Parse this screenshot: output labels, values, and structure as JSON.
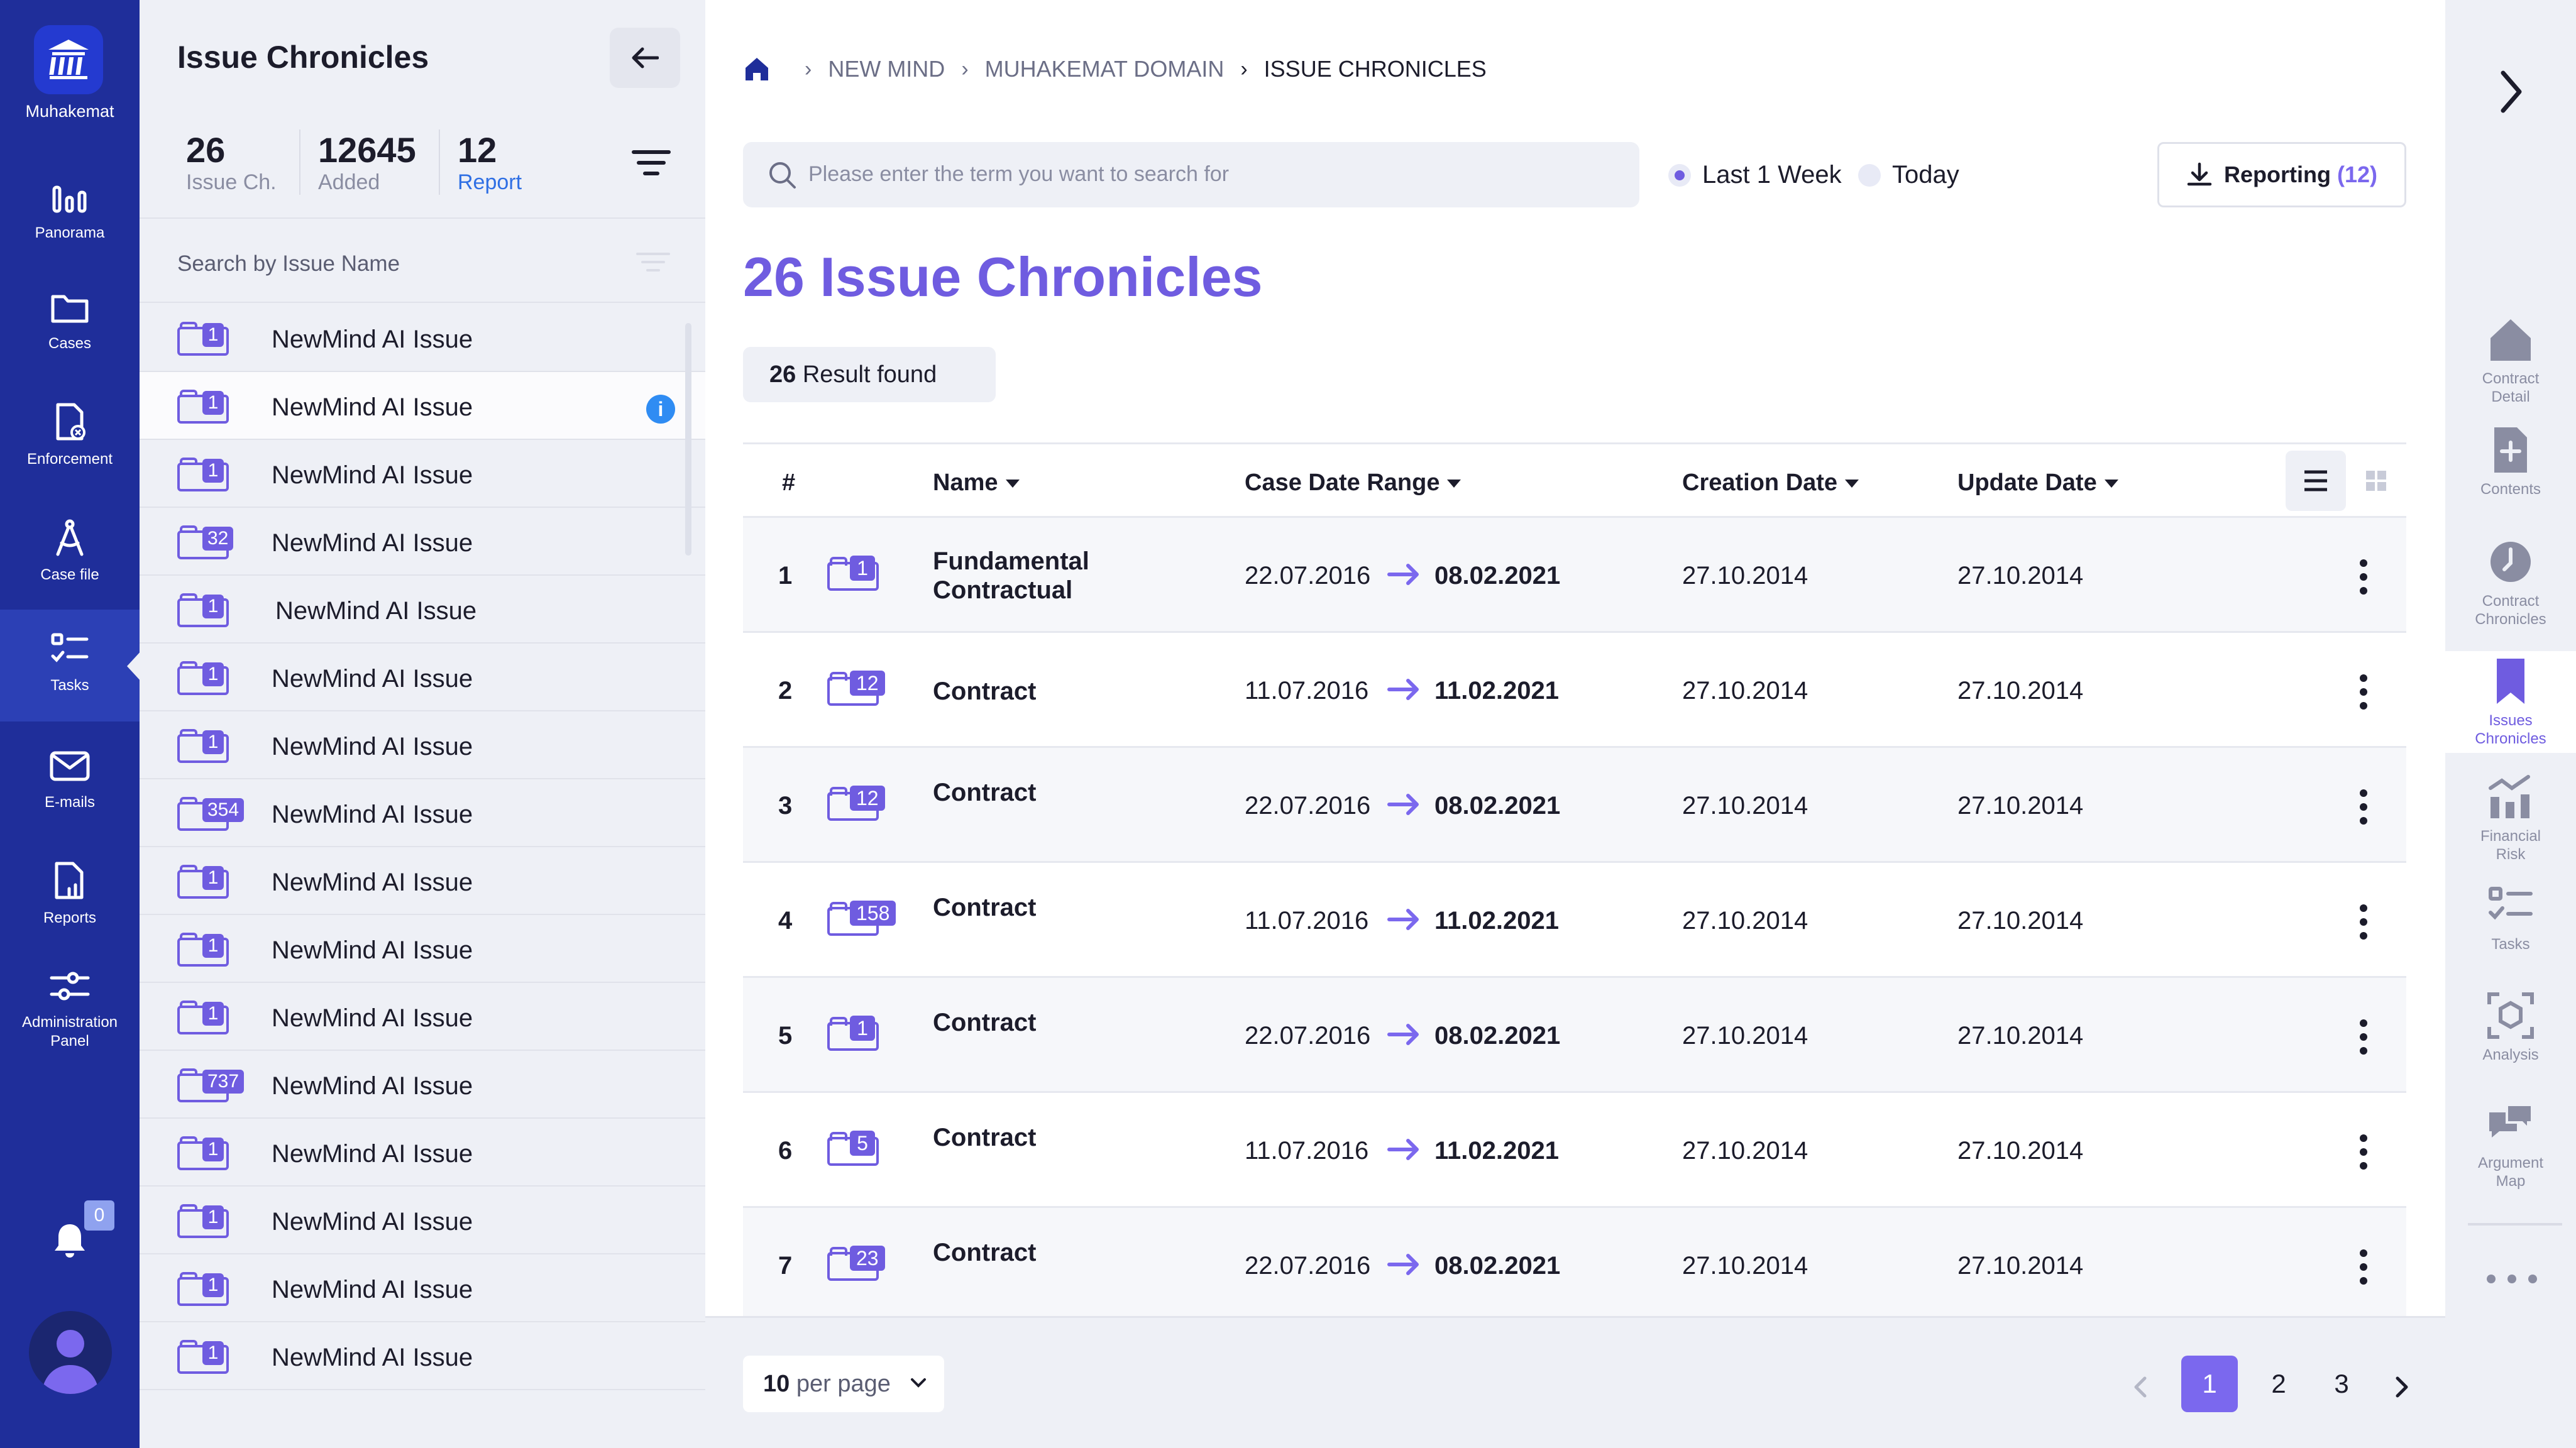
{
  "app": {
    "name": "Muhakemat",
    "colors": {
      "nav_bg": "#1f2e9a",
      "accent": "#6f5ce0",
      "panel_bg": "#eef0f6"
    }
  },
  "left_nav": {
    "items": [
      {
        "label": "Panorama",
        "icon": "bar-chart-icon"
      },
      {
        "label": "Cases",
        "icon": "folder-icon"
      },
      {
        "label": "Enforcement",
        "icon": "document-cancel-icon"
      },
      {
        "label": "Case file",
        "icon": "compass-icon"
      },
      {
        "label": "Tasks",
        "icon": "task-list-icon",
        "active": true
      },
      {
        "label": "E-mails",
        "icon": "mail-icon"
      },
      {
        "label": "Reports",
        "icon": "report-icon"
      },
      {
        "label": "Administration",
        "label2": "Panel",
        "icon": "sliders-icon"
      }
    ],
    "notifications": "0"
  },
  "issue_panel": {
    "title": "Issue Chronicles",
    "stats": [
      {
        "value": "26",
        "caption": "Issue Ch."
      },
      {
        "value": "12645",
        "caption": "Added"
      },
      {
        "value": "12",
        "caption": "Report"
      }
    ],
    "search_placeholder": "Search by Issue Name",
    "issues": [
      {
        "badge": "1",
        "name": "NewMind AI Issue"
      },
      {
        "badge": "1",
        "name": "NewMind AI Issue",
        "info": "i"
      },
      {
        "badge": "1",
        "name": "NewMind AI Issue"
      },
      {
        "badge": "32",
        "name": "NewMind AI Issue"
      },
      {
        "badge": "1",
        "name": "NewMind AI Issue"
      },
      {
        "badge": "1",
        "name": "NewMind AI Issue"
      },
      {
        "badge": "1",
        "name": "NewMind AI Issue"
      },
      {
        "badge": "354",
        "name": "NewMind AI Issue"
      },
      {
        "badge": "1",
        "name": "NewMind AI Issue"
      },
      {
        "badge": "1",
        "name": "NewMind AI Issue"
      },
      {
        "badge": "1",
        "name": "NewMind AI Issue"
      },
      {
        "badge": "737",
        "name": "NewMind AI Issue"
      },
      {
        "badge": "1",
        "name": "NewMind AI Issue"
      },
      {
        "badge": "1",
        "name": "NewMind AI Issue"
      },
      {
        "badge": "1",
        "name": "NewMind AI Issue"
      },
      {
        "badge": "1",
        "name": "NewMind AI Issue"
      }
    ]
  },
  "main": {
    "breadcrumb": [
      "NEW MIND",
      "MUHAKEMAT DOMAIN",
      "ISSUE CHRONICLES"
    ],
    "search_placeholder": "Please enter the term you want to search for",
    "filters": [
      {
        "label": "Last 1 Week",
        "selected": true
      },
      {
        "label": "Today",
        "selected": false
      }
    ],
    "reporting": {
      "label": "Reporting",
      "count": "(12)"
    },
    "heading": "26 Issue Chronicles",
    "results": {
      "count": "26",
      "label": "Result found"
    },
    "table": {
      "headers": [
        "#",
        "Name",
        "Case Date Range",
        "Creation Date",
        "Update Date"
      ],
      "rows": [
        {
          "num": "1",
          "badge": "1",
          "name": "Fundamental Contractual",
          "from": "22.07.2016",
          "to": "08.02.2021",
          "created": "27.10.2014",
          "updated": "27.10.2014"
        },
        {
          "num": "2",
          "badge": "12",
          "name": "Contract",
          "from": "11.07.2016",
          "to": "11.02.2021",
          "created": "27.10.2014",
          "updated": "27.10.2014"
        },
        {
          "num": "3",
          "badge": "12",
          "name": "Contract",
          "from": "22.07.2016",
          "to": "08.02.2021",
          "created": "27.10.2014",
          "updated": "27.10.2014"
        },
        {
          "num": "4",
          "badge": "158",
          "name": "Contract",
          "from": "11.07.2016",
          "to": "11.02.2021",
          "created": "27.10.2014",
          "updated": "27.10.2014"
        },
        {
          "num": "5",
          "badge": "1",
          "name": "Contract",
          "from": "22.07.2016",
          "to": "08.02.2021",
          "created": "27.10.2014",
          "updated": "27.10.2014"
        },
        {
          "num": "6",
          "badge": "5",
          "name": "Contract",
          "from": "11.07.2016",
          "to": "11.02.2021",
          "created": "27.10.2014",
          "updated": "27.10.2014"
        },
        {
          "num": "7",
          "badge": "23",
          "name": "Contract",
          "from": "22.07.2016",
          "to": "08.02.2021",
          "created": "27.10.2014",
          "updated": "27.10.2014"
        }
      ]
    },
    "pagination": {
      "per_page_value": "10",
      "per_page_label": "per page",
      "pages": [
        "1",
        "2",
        "3"
      ],
      "current": "1"
    }
  },
  "right_rail": {
    "items": [
      {
        "line1": "Contract",
        "line2": "Detail",
        "icon": "home-icon"
      },
      {
        "line1": "Contents",
        "line2": "",
        "icon": "document-plus-icon"
      },
      {
        "line1": "Contract",
        "line2": "Chronicles",
        "icon": "clock-icon"
      },
      {
        "line1": "Issues",
        "line2": "Chronicles",
        "icon": "bookmark-icon",
        "active": true
      },
      {
        "line1": "Financial",
        "line2": "Risk",
        "icon": "financial-chart-icon"
      },
      {
        "line1": "Tasks",
        "line2": "",
        "icon": "task-list-icon"
      },
      {
        "line1": "Analysis",
        "line2": "",
        "icon": "cube-scan-icon"
      },
      {
        "line1": "Argument",
        "line2": "Map",
        "icon": "chat-bubbles-icon"
      }
    ]
  }
}
